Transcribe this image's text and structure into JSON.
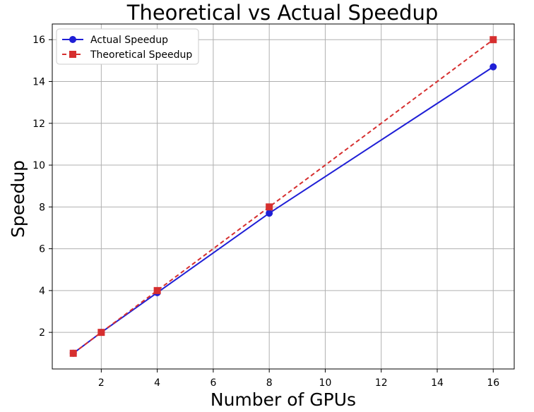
{
  "chart_data": {
    "type": "line",
    "title": "Theoretical vs Actual Speedup",
    "xlabel": "Number of GPUs",
    "ylabel": "Speedup",
    "xlim": [
      0.25,
      16.75
    ],
    "ylim": [
      0.25,
      16.75
    ],
    "x_ticks": [
      2,
      4,
      6,
      8,
      10,
      12,
      14,
      16
    ],
    "y_ticks": [
      2,
      4,
      6,
      8,
      10,
      12,
      14,
      16
    ],
    "grid": true,
    "legend_position": "top-left",
    "x": [
      1,
      2,
      4,
      8,
      16
    ],
    "series": [
      {
        "name": "Actual Speedup",
        "values": [
          1.0,
          2.0,
          3.9,
          7.7,
          14.7
        ],
        "color": "#1f1fd6",
        "marker": "circle",
        "line_style": "solid"
      },
      {
        "name": "Theoretical Speedup",
        "values": [
          1,
          2,
          4,
          8,
          16
        ],
        "color": "#d62f2f",
        "marker": "square",
        "line_style": "dashed"
      }
    ]
  }
}
